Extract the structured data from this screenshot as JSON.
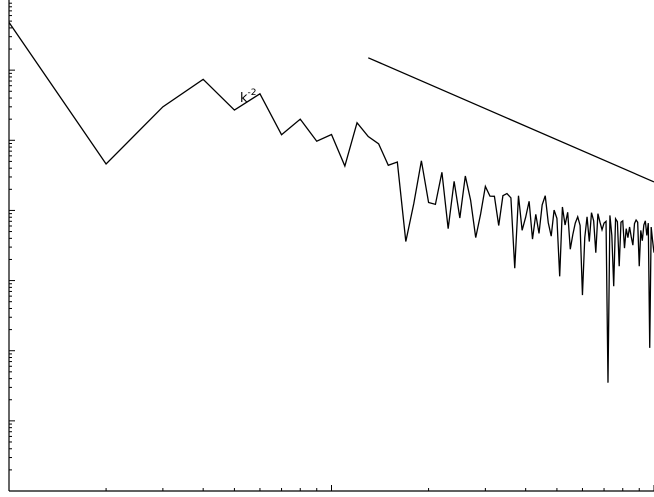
{
  "chart_data": {
    "type": "line",
    "title": "",
    "xlabel": "",
    "ylabel": "",
    "xscale": "log",
    "yscale": "log",
    "xlim_decades": [
      0,
      2
    ],
    "ylim_decades": [
      -7,
      0
    ],
    "grid": false,
    "tick_labels_shown": false,
    "series": [
      {
        "values": [
          [
            1,
            0.48
          ],
          [
            2,
            0.0046
          ],
          [
            3,
            0.03
          ],
          [
            4,
            0.074
          ],
          [
            5,
            0.027
          ],
          [
            6,
            0.046
          ],
          [
            7,
            0.012
          ],
          [
            8,
            0.02
          ],
          [
            9,
            0.0097
          ],
          [
            10,
            0.0121
          ],
          [
            11,
            0.0043
          ],
          [
            12,
            0.0178
          ],
          [
            13,
            0.0113
          ],
          [
            14,
            0.0089
          ],
          [
            15,
            0.0044
          ],
          [
            16,
            0.0049
          ],
          [
            17,
            0.00036
          ],
          [
            18,
            0.00126
          ],
          [
            19,
            0.0051
          ],
          [
            20,
            0.0013
          ],
          [
            21,
            0.00122
          ],
          [
            22,
            0.0035
          ],
          [
            23,
            0.00055
          ],
          [
            24,
            0.0026
          ],
          [
            25,
            0.00078
          ],
          [
            26,
            0.0031
          ],
          [
            27,
            0.0014
          ],
          [
            28,
            0.00041
          ],
          [
            29,
            0.00089
          ],
          [
            30,
            0.0022
          ],
          [
            31,
            0.0016
          ],
          [
            32,
            0.00159
          ],
          [
            33,
            0.00061
          ],
          [
            34,
            0.00162
          ],
          [
            35,
            0.00174
          ],
          [
            36,
            0.00151
          ],
          [
            37,
            0.00015
          ],
          [
            38,
            0.00162
          ],
          [
            39,
            0.00052
          ],
          [
            40,
            0.0008
          ],
          [
            41,
            0.00135
          ],
          [
            42,
            0.00039
          ],
          [
            43,
            0.00088
          ],
          [
            44,
            0.00047
          ],
          [
            45,
            0.0012
          ],
          [
            46,
            0.00162
          ],
          [
            47,
            0.00067
          ],
          [
            48,
            0.00043
          ],
          [
            49,
            0.00101
          ],
          [
            50,
            0.00077
          ],
          [
            51,
            0.000115
          ],
          [
            52,
            0.00112
          ],
          [
            53,
            0.00062
          ],
          [
            54,
            0.00094
          ],
          [
            55,
            0.00028
          ],
          [
            56,
            0.00045
          ],
          [
            57,
            0.00066
          ],
          [
            58,
            0.00081
          ],
          [
            59,
            0.00061
          ],
          [
            60,
            6.2e-05
          ],
          [
            61,
            0.00041
          ],
          [
            62,
            0.00081
          ],
          [
            63,
            0.00036
          ],
          [
            64,
            0.00093
          ],
          [
            65,
            0.00071
          ],
          [
            66,
            0.00025
          ],
          [
            67,
            0.0009
          ],
          [
            68,
            0.00068
          ],
          [
            69,
            0.00053
          ],
          [
            70,
            0.00066
          ],
          [
            71,
            0.0007
          ],
          [
            72,
            3.5e-06
          ],
          [
            73,
            0.00085
          ],
          [
            74,
            0.00044
          ],
          [
            75,
            8.3e-05
          ],
          [
            76,
            0.00076
          ],
          [
            77,
            0.00069
          ],
          [
            78,
            0.00016
          ],
          [
            79,
            0.00068
          ],
          [
            80,
            0.00071
          ],
          [
            81,
            0.00029
          ],
          [
            82,
            0.00055
          ],
          [
            83,
            0.00041
          ],
          [
            84,
            0.00058
          ],
          [
            85,
            0.00042
          ],
          [
            86,
            0.00032
          ],
          [
            87,
            0.00065
          ],
          [
            88,
            0.00073
          ],
          [
            89,
            0.00068
          ],
          [
            90,
            0.00016
          ],
          [
            91,
            0.00052
          ],
          [
            92,
            0.00037
          ],
          [
            93,
            0.00062
          ],
          [
            94,
            0.00071
          ],
          [
            95,
            0.00044
          ],
          [
            96,
            0.00066
          ],
          [
            97,
            1.1e-05
          ],
          [
            98,
            0.00058
          ],
          [
            99,
            0.00037
          ],
          [
            100,
            0.00025
          ]
        ]
      },
      {
        "style": "reference-line",
        "values": [
          [
            13,
            0.15
          ],
          [
            100,
            0.00255
          ]
        ]
      }
    ],
    "annotations": [
      {
        "base": "k",
        "exponent": "-2"
      }
    ]
  }
}
